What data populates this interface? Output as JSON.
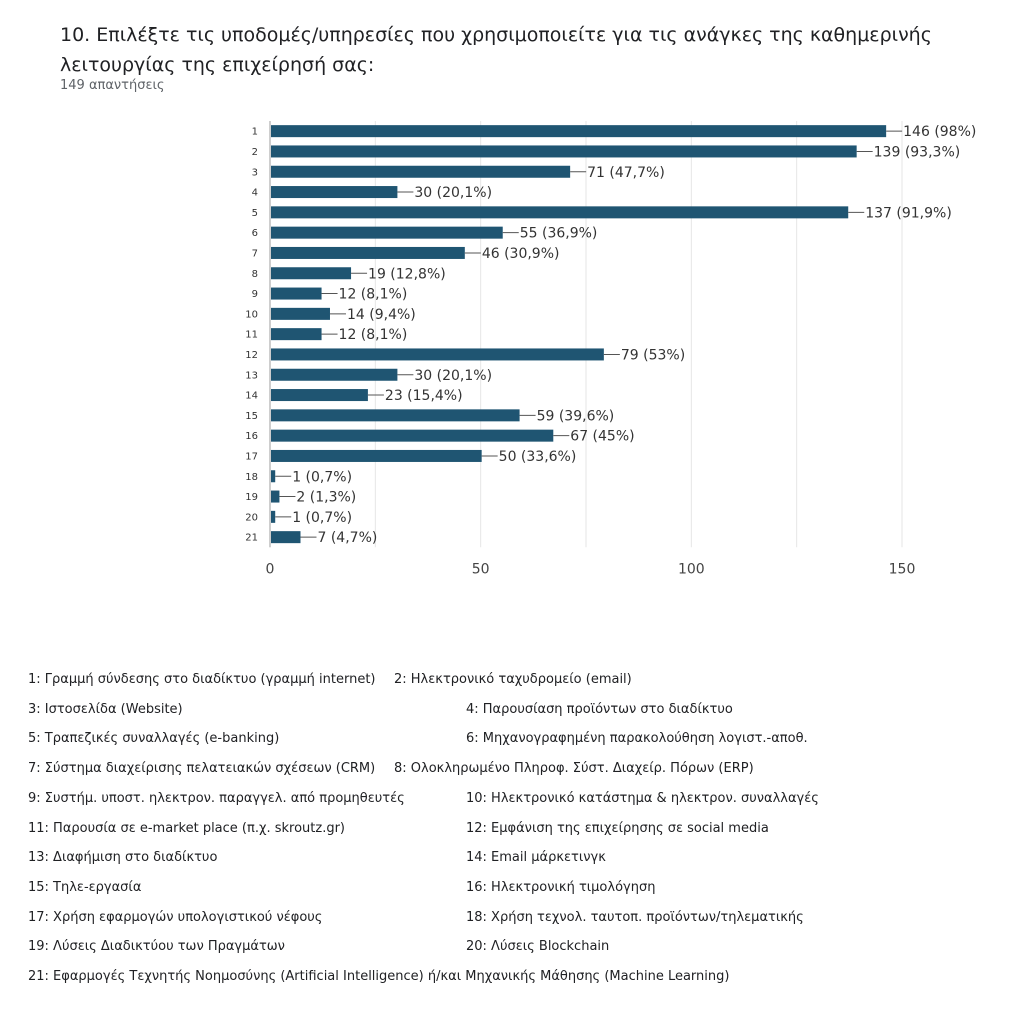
{
  "question": {
    "title": "10. Επιλέξτε τις υποδομές/υπηρεσίες που χρησιμοποιείτε για τις ανάγκες της καθημερινής λειτουργίας της επιχείρησή σας:",
    "responses": "149 απαντήσεις"
  },
  "colors": {
    "bar": "#1f5572",
    "grid": "#e6e6e6",
    "axis": "#9e9e9e",
    "text": "#202124"
  },
  "chart_data": {
    "type": "bar",
    "orientation": "horizontal",
    "categories": [
      "1",
      "2",
      "3",
      "4",
      "5",
      "6",
      "7",
      "8",
      "9",
      "10",
      "11",
      "12",
      "13",
      "14",
      "15",
      "16",
      "17",
      "18",
      "19",
      "20",
      "21"
    ],
    "values": [
      146,
      139,
      71,
      30,
      137,
      55,
      46,
      19,
      12,
      14,
      12,
      79,
      30,
      23,
      59,
      67,
      50,
      1,
      2,
      1,
      7
    ],
    "data_labels": [
      "146 (98%)",
      "139 (93,3%)",
      "71 (47,7%)",
      "30 (20,1%)",
      "137 (91,9%)",
      "55 (36,9%)",
      "46 (30,9%)",
      "19 (12,8%)",
      "12 (8,1%)",
      "14 (9,4%)",
      "12 (8,1%)",
      "79 (53%)",
      "30 (20,1%)",
      "23 (15,4%)",
      "59 (39,6%)",
      "67 (45%)",
      "50 (33,6%)",
      "1 (0,7%)",
      "2 (1,3%)",
      "1 (0,7%)",
      "7 (4,7%)"
    ],
    "xlim": [
      0,
      150
    ],
    "xticks": [
      0,
      50,
      100,
      150
    ],
    "grid": true,
    "xlabel": "",
    "ylabel": ""
  },
  "legend": [
    [
      "1: Γραμμή σύνδεσης στο διαδίκτυο (γραμμή internet)",
      "2: Ηλεκτρονικό ταχυδρομείο (email)"
    ],
    [
      "3: Ιστοσελίδα (Website)",
      "4: Παρουσίαση προϊόντων στο διαδίκτυο"
    ],
    [
      "5: Τραπεζικές συναλλαγές (e-banking)",
      "6: Μηχανογραφημένη παρακολούθηση λογιστ.-αποθ."
    ],
    [
      "7: Σύστημα διαχείρισης πελατειακών σχέσεων (CRM)",
      "8: Ολοκληρωμένο Πληροφ. Σύστ. Διαχείρ. Πόρων (ERP)"
    ],
    [
      "9: Συστήμ. υποστ. ηλεκτρον. παραγγελ. από προμηθευτές",
      "10: Ηλεκτρονικό κατάστημα & ηλεκτρον. συναλλαγές"
    ],
    [
      "11: Παρουσία σε e-market place (π.χ. skroutz.gr)",
      "12: Εμφάνιση της επιχείρησης σε social media"
    ],
    [
      "13: Διαφήμιση στο διαδίκτυο",
      "14: Email μάρκετινγκ"
    ],
    [
      "15: Τηλε-εργασία",
      "16: Ηλεκτρονική τιμολόγηση"
    ],
    [
      "17: Χρήση εφαρμογών υπολογιστικού νέφους",
      "18: Χρήση τεχνολ. ταυτοπ. προϊόντων/τηλεματικής"
    ],
    [
      "19: Λύσεις Διαδικτύου των Πραγμάτων",
      "20: Λύσεις Blockchain"
    ],
    [
      "21: Εφαρμογές Τεχνητής Νοημοσύνης (Artificial Intelligence) ή/και Μηχανικής Μάθησης (Machine Learning)"
    ]
  ]
}
